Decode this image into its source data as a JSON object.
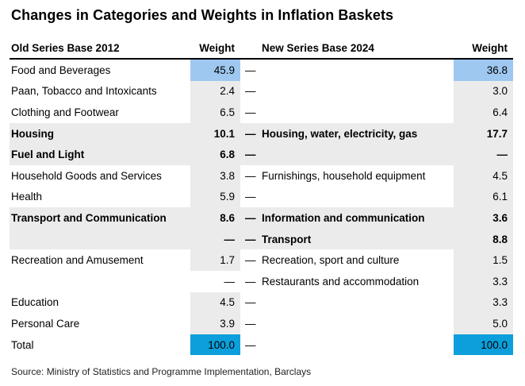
{
  "title": "Changes in Categories and Weights in Inflation Baskets",
  "source": "Source: Ministry of Statistics and Programme Implementation, Barclays",
  "colors": {
    "highlight_blue": "#9ec8f0",
    "total_blue": "#0c9fdb",
    "shade_gray": "#ebebeb"
  },
  "chart_data": {
    "type": "table",
    "title": "Changes in Categories and Weights in Inflation Baskets",
    "columns": [
      "Old Series Base 2012",
      "Weight",
      "New Series Base 2024",
      "Weight"
    ],
    "rows": [
      {
        "old_category": "Food and Beverages",
        "old_weight": "45.9",
        "link_dash": "—",
        "new_category": "",
        "new_weight": "36.8",
        "bold": false,
        "row_shaded": false,
        "old_cell": "blue",
        "new_cell": "blue"
      },
      {
        "old_category": "Paan, Tobacco and Intoxicants",
        "old_weight": "2.4",
        "link_dash": "—",
        "new_category": "",
        "new_weight": "3.0",
        "bold": false,
        "row_shaded": false,
        "old_cell": "gray",
        "new_cell": "gray"
      },
      {
        "old_category": "Clothing and Footwear",
        "old_weight": "6.5",
        "link_dash": "—",
        "new_category": "",
        "new_weight": "6.4",
        "bold": false,
        "row_shaded": false,
        "old_cell": "gray",
        "new_cell": "gray"
      },
      {
        "old_category": "Housing",
        "old_weight": "10.1",
        "link_dash": "—",
        "new_category": "Housing, water, electricity, gas",
        "new_weight": "17.7",
        "bold": true,
        "row_shaded": true,
        "old_cell": "gray",
        "new_cell": "gray"
      },
      {
        "old_category": "Fuel and Light",
        "old_weight": "6.8",
        "link_dash": "—",
        "new_category": "",
        "new_weight": "—",
        "bold": true,
        "row_shaded": true,
        "old_cell": "gray",
        "new_cell": "gray"
      },
      {
        "old_category": "Household Goods and Services",
        "old_weight": "3.8",
        "link_dash": "—",
        "new_category": "Furnishings, household equipment",
        "new_weight": "4.5",
        "bold": false,
        "row_shaded": false,
        "old_cell": "gray",
        "new_cell": "gray"
      },
      {
        "old_category": "Health",
        "old_weight": "5.9",
        "link_dash": "—",
        "new_category": "",
        "new_weight": "6.1",
        "bold": false,
        "row_shaded": false,
        "old_cell": "gray",
        "new_cell": "gray"
      },
      {
        "old_category": "Transport and Communication",
        "old_weight": "8.6",
        "link_dash": "—",
        "new_category": "Information and communication",
        "new_weight": "3.6",
        "bold": true,
        "row_shaded": true,
        "old_cell": "gray",
        "new_cell": "gray"
      },
      {
        "old_category": "",
        "old_weight": "—",
        "link_dash": "—",
        "new_category": "Transport",
        "new_weight": "8.8",
        "bold": true,
        "row_shaded": true,
        "old_cell": "gray",
        "new_cell": "gray"
      },
      {
        "old_category": "Recreation and Amusement",
        "old_weight": "1.7",
        "link_dash": "—",
        "new_category": "Recreation, sport and culture",
        "new_weight": "1.5",
        "bold": false,
        "row_shaded": false,
        "old_cell": "gray",
        "new_cell": "gray"
      },
      {
        "old_category": "",
        "old_weight": "—",
        "link_dash": "—",
        "new_category": "Restaurants and accommodation",
        "new_weight": "3.3",
        "bold": false,
        "row_shaded": false,
        "old_cell": "none",
        "new_cell": "gray"
      },
      {
        "old_category": "Education",
        "old_weight": "4.5",
        "link_dash": "—",
        "new_category": "",
        "new_weight": "3.3",
        "bold": false,
        "row_shaded": false,
        "old_cell": "gray",
        "new_cell": "gray"
      },
      {
        "old_category": "Personal Care",
        "old_weight": "3.9",
        "link_dash": "—",
        "new_category": "",
        "new_weight": "5.0",
        "bold": false,
        "row_shaded": false,
        "old_cell": "gray",
        "new_cell": "gray"
      },
      {
        "old_category": "Total",
        "old_weight": "100.0",
        "link_dash": "—",
        "new_category": "",
        "new_weight": "100.0",
        "bold": false,
        "row_shaded": false,
        "old_cell": "bright",
        "new_cell": "bright"
      }
    ]
  }
}
